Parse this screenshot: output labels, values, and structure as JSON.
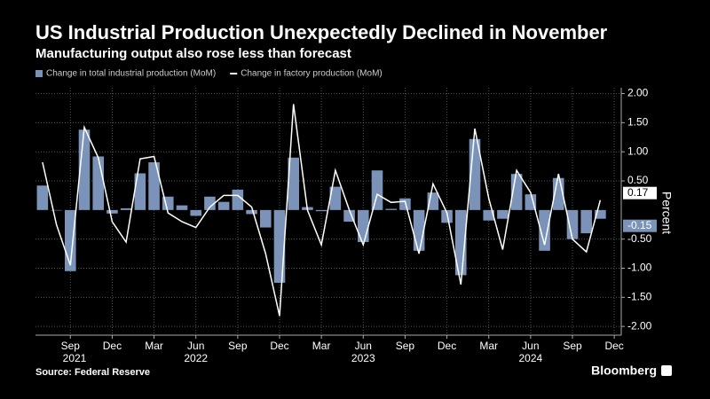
{
  "chart_data": {
    "type": "bar_line",
    "title": "US Industrial Production Unexpectedly Declined in November",
    "subtitle": "Manufacturing output also rose less than forecast",
    "source": "Source: Federal Reserve",
    "brand": "Bloomberg",
    "y_label": "Percent",
    "categories": [
      null,
      null,
      "Sep",
      null,
      null,
      "Dec",
      null,
      null,
      "Mar",
      null,
      null,
      "Jun",
      null,
      null,
      "Sep",
      null,
      null,
      "Dec",
      null,
      null,
      "Mar",
      null,
      null,
      "Jun",
      null,
      null,
      "Sep",
      null,
      null,
      "Dec",
      null,
      null,
      "Mar",
      null,
      null,
      "Jun",
      null,
      null,
      "Sep",
      null,
      null,
      "Dec"
    ],
    "years": [
      "2021",
      "2022",
      "2023",
      "2024"
    ],
    "series": [
      {
        "name": "Change in total industrial production (MoM)",
        "color": "#7b93b8",
        "kind": "bar",
        "values": [
          0.42,
          0.0,
          -1.05,
          1.38,
          0.92,
          -0.06,
          0.03,
          0.63,
          0.82,
          0.23,
          0.08,
          -0.1,
          0.23,
          0.14,
          0.35,
          -0.07,
          -0.3,
          -1.25,
          0.9,
          0.05,
          -0.02,
          0.4,
          -0.2,
          -0.55,
          0.68,
          0.02,
          0.2,
          -0.7,
          0.3,
          -0.22,
          -1.12,
          1.22,
          -0.18,
          -0.15,
          0.62,
          0.27,
          -0.7,
          0.55,
          -0.5,
          -0.4,
          -0.15,
          null
        ]
      },
      {
        "name": "Change in factory production (MoM)",
        "color": "#ffffff",
        "kind": "line",
        "values": [
          0.82,
          -0.25,
          -0.95,
          1.42,
          0.9,
          -0.2,
          -0.55,
          0.88,
          0.92,
          -0.05,
          -0.2,
          -0.3,
          0.05,
          0.25,
          0.25,
          0.05,
          -0.75,
          -1.82,
          1.82,
          0.0,
          -0.6,
          0.68,
          0.0,
          -0.6,
          0.27,
          0.13,
          0.15,
          -0.75,
          0.45,
          -0.05,
          -1.28,
          1.4,
          0.2,
          -0.68,
          0.68,
          0.3,
          -0.6,
          0.62,
          -0.5,
          -0.72,
          0.17,
          null
        ]
      }
    ],
    "ylim": [
      -2.15,
      2.1
    ],
    "yticks": [
      {
        "value": -2,
        "label": "-2.00"
      },
      {
        "value": -1.5,
        "label": "-1.50"
      },
      {
        "value": -1,
        "label": "-1.00"
      },
      {
        "value": -0.5,
        "label": "-0.50"
      },
      {
        "value": 0.5,
        "label": "0.50"
      },
      {
        "value": 1,
        "label": "1.00"
      },
      {
        "value": 1.5,
        "label": "1.50"
      },
      {
        "value": 2,
        "label": "2.00"
      }
    ],
    "grid": true
  }
}
